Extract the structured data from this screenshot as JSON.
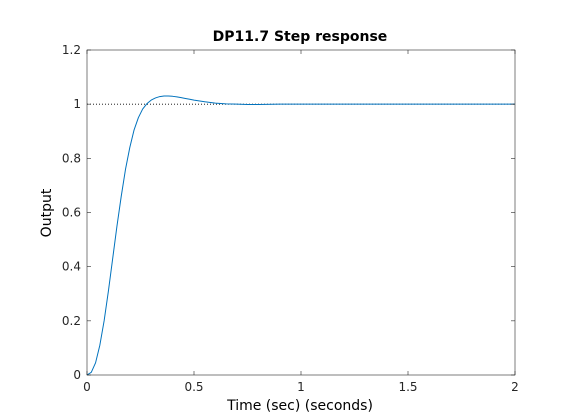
{
  "chart_data": {
    "type": "line",
    "title": "DP11.7 Step response",
    "xlabel": "Time (sec) (seconds)",
    "ylabel": "Output",
    "xlim": [
      0,
      2
    ],
    "ylim": [
      0,
      1.2
    ],
    "xticks": [
      0,
      0.5,
      1,
      1.5,
      2
    ],
    "xtick_labels": [
      "0",
      "0.5",
      "1",
      "1.5",
      "2"
    ],
    "yticks": [
      0,
      0.2,
      0.4,
      0.6,
      0.8,
      1,
      1.2
    ],
    "ytick_labels": [
      "0",
      "0.2",
      "0.4",
      "0.6",
      "0.8",
      "1",
      "1.2"
    ],
    "grid": false,
    "series": [
      {
        "color": "#0072BD",
        "x": [
          0,
          0.02,
          0.04,
          0.06,
          0.08,
          0.1,
          0.12,
          0.14,
          0.16,
          0.18,
          0.2,
          0.22,
          0.24,
          0.26,
          0.28,
          0.3,
          0.32,
          0.34,
          0.36,
          0.38,
          0.4,
          0.42,
          0.44,
          0.46,
          0.48,
          0.5,
          0.55,
          0.6,
          0.65,
          0.7,
          0.75,
          0.8,
          0.9,
          1.0,
          1.2,
          1.4,
          1.6,
          1.8,
          2.0
        ],
        "y": [
          0,
          0.01,
          0.045,
          0.11,
          0.2,
          0.31,
          0.43,
          0.55,
          0.66,
          0.76,
          0.84,
          0.905,
          0.95,
          0.982,
          1.002,
          1.015,
          1.023,
          1.028,
          1.03,
          1.03,
          1.029,
          1.027,
          1.024,
          1.021,
          1.018,
          1.015,
          1.009,
          1.004,
          1.001,
          1.0,
          0.999,
          0.999,
          1.0,
          1.0,
          1.0,
          1.0,
          1.0,
          1.0,
          1.0
        ]
      }
    ],
    "reference_line": {
      "y": 1,
      "style": "dotted",
      "color": "#000000"
    }
  }
}
